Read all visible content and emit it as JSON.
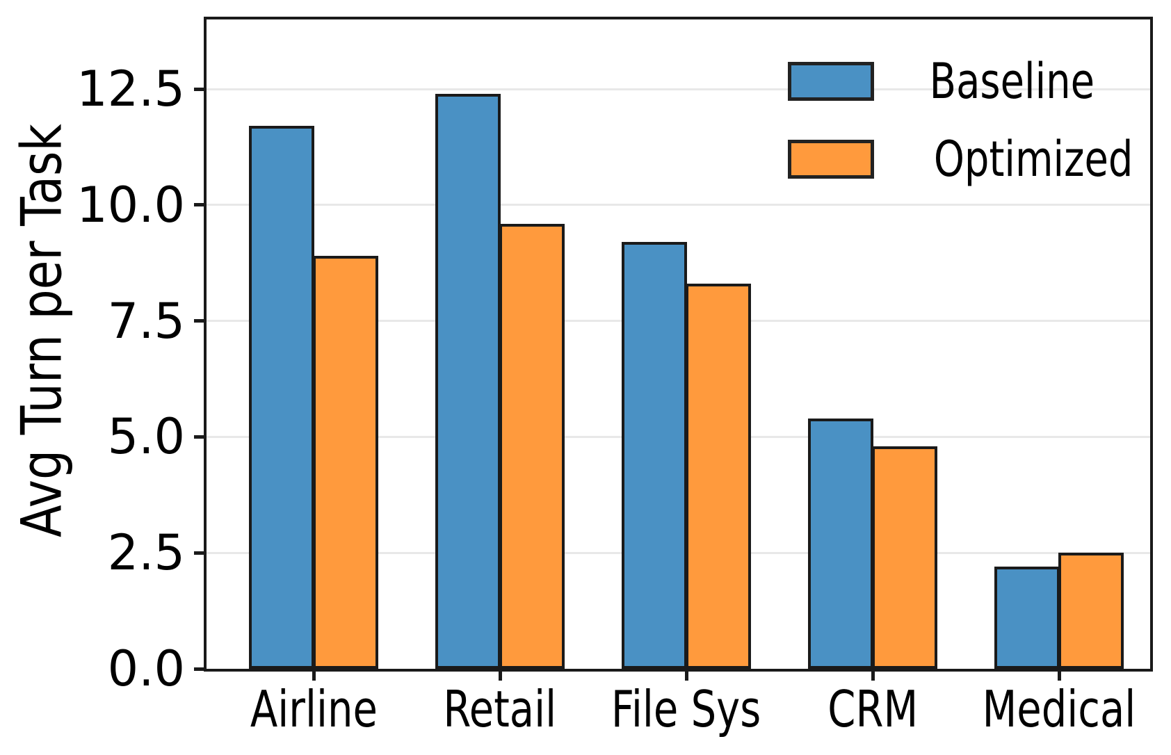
{
  "chart_data": {
    "type": "bar",
    "title": "",
    "categories": [
      "Airline",
      "Retail",
      "File Sys",
      "CRM",
      "Medical"
    ],
    "series": [
      {
        "name": "Baseline",
        "color": "#4A91C4",
        "values": [
          11.7,
          12.4,
          9.2,
          5.4,
          2.2
        ]
      },
      {
        "name": "Optimized",
        "color": "#FF9A3D",
        "values": [
          8.9,
          9.6,
          8.3,
          4.8,
          2.5
        ]
      }
    ],
    "xlabel": "",
    "ylabel": "Avg Turn per Task",
    "ylim": [
      0,
      14
    ],
    "yticks": [
      0.0,
      2.5,
      5.0,
      7.5,
      10.0,
      12.5
    ],
    "yticklabels": [
      "0.0",
      "2.5",
      "5.0",
      "7.5",
      "10.0",
      "12.5"
    ],
    "grid": "horizontal",
    "grid_color": "#e8e8e8",
    "edge_color": "#1a1a1a",
    "background_color": "#ffffff",
    "legend": {
      "position": "upper-right",
      "entries": [
        "Baseline",
        "Optimized"
      ]
    }
  }
}
